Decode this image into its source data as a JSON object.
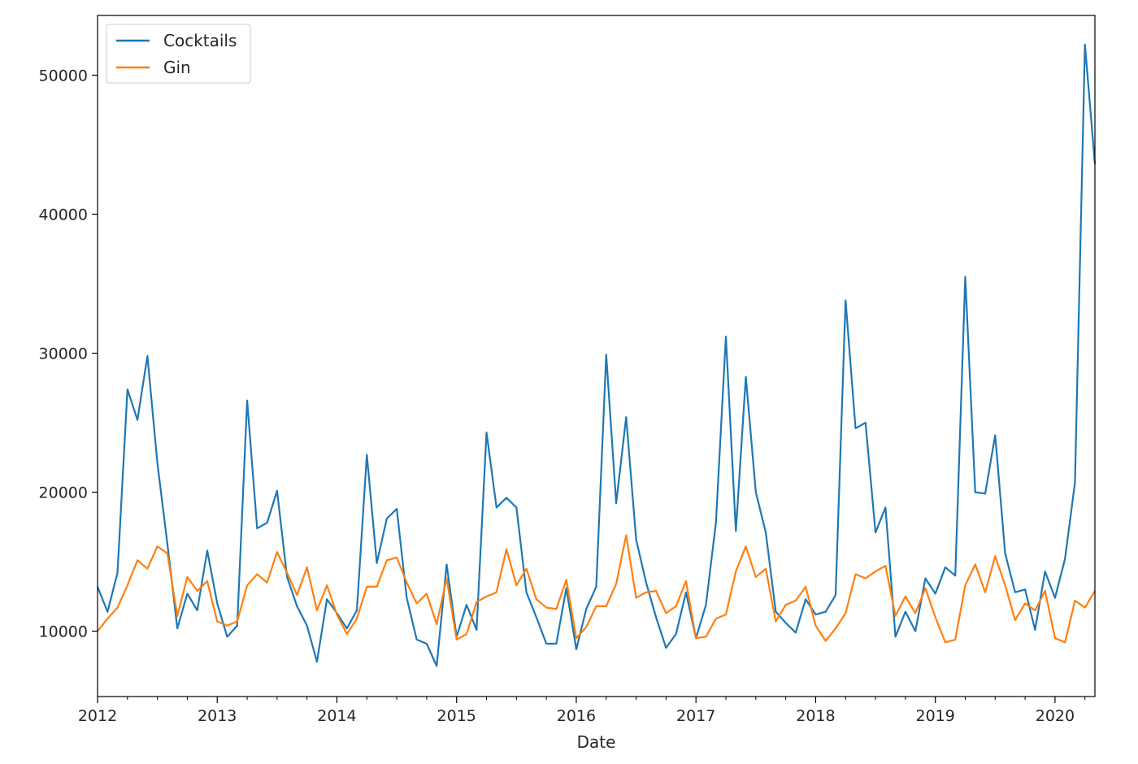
{
  "chart_data": {
    "type": "line",
    "xlabel": "Date",
    "ylabel": "",
    "x_start": "2012-01",
    "x_frequency": "monthly",
    "xlim": [
      "2012-01",
      "2020-05"
    ],
    "ylim": [
      5300,
      54300
    ],
    "xticks": [
      "2012",
      "2013",
      "2014",
      "2015",
      "2016",
      "2017",
      "2018",
      "2019",
      "2020"
    ],
    "yticks": [
      10000,
      20000,
      30000,
      40000,
      50000
    ],
    "grid": false,
    "legend_position": "top-left",
    "series": [
      {
        "name": "Cocktails",
        "color": "#1f77b4",
        "values": [
          13200,
          11400,
          14200,
          27400,
          25200,
          29800,
          22100,
          16300,
          10200,
          12700,
          11500,
          15800,
          12000,
          9600,
          10400,
          26600,
          17400,
          17800,
          20100,
          13900,
          11800,
          10400,
          7800,
          12300,
          11300,
          10200,
          11500,
          22700,
          14900,
          18100,
          18800,
          12400,
          9400,
          9100,
          7500,
          14800,
          9600,
          11900,
          10100,
          24300,
          18900,
          19600,
          18900,
          12800,
          11000,
          9100,
          9100,
          13100,
          8700,
          11600,
          13200,
          29900,
          19200,
          25400,
          16600,
          13500,
          11000,
          8800,
          9800,
          12800,
          9500,
          11900,
          17800,
          31200,
          17200,
          28300,
          20000,
          17100,
          11400,
          10600,
          9900,
          12300,
          11200,
          11400,
          12600,
          33800,
          24600,
          25000,
          17100,
          18900,
          9600,
          11400,
          10000,
          13800,
          12700,
          14600,
          14000,
          35500,
          20000,
          19900,
          24100,
          15600,
          12800,
          13000,
          10100,
          14300,
          12400,
          15200,
          20700,
          52200,
          43600
        ]
      },
      {
        "name": "Gin",
        "color": "#ff7f0e",
        "values": [
          10000,
          10900,
          11700,
          13300,
          15100,
          14500,
          16100,
          15600,
          11100,
          13900,
          12900,
          13600,
          10700,
          10400,
          10700,
          13300,
          14100,
          13500,
          15700,
          14200,
          12600,
          14600,
          11500,
          13300,
          11200,
          9800,
          10900,
          13200,
          13200,
          15100,
          15300,
          13500,
          12000,
          12700,
          10500,
          13800,
          9400,
          9800,
          12100,
          12500,
          12800,
          15900,
          13300,
          14500,
          12300,
          11700,
          11600,
          13700,
          9500,
          10300,
          11800,
          11800,
          13400,
          16900,
          12400,
          12800,
          12900,
          11300,
          11800,
          13600,
          9500,
          9600,
          10900,
          11200,
          14300,
          16100,
          13900,
          14500,
          10700,
          11900,
          12200,
          13200,
          10400,
          9300,
          10200,
          11300,
          14100,
          13800,
          14300,
          14700,
          11100,
          12500,
          11300,
          13100,
          11000,
          9200,
          9400,
          13300,
          14800,
          12800,
          15400,
          13300,
          10800,
          12000,
          11500,
          12900,
          9500,
          9200,
          12200,
          11700,
          12900
        ]
      }
    ]
  }
}
